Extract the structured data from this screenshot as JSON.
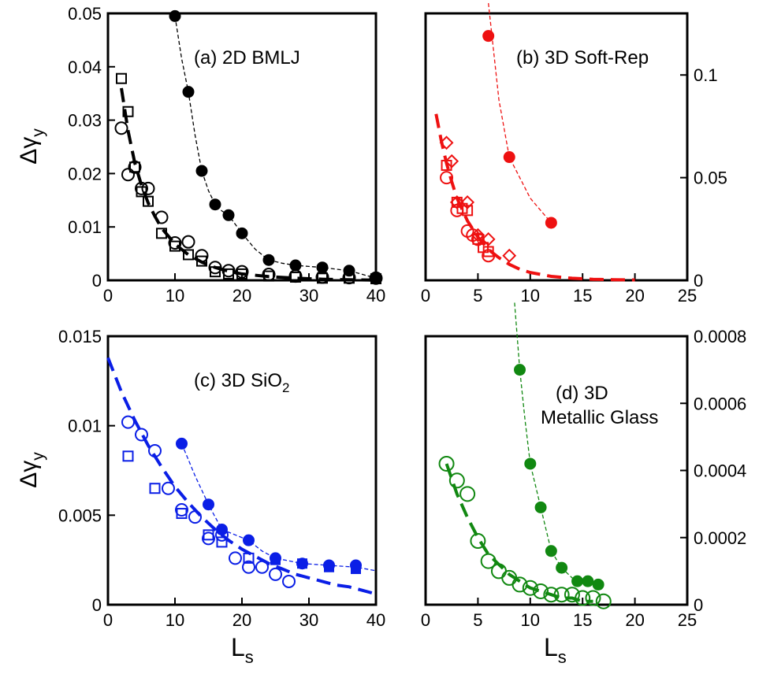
{
  "labels": {
    "x": "L",
    "x_sub": "s",
    "y_delta": "Δγ",
    "y_sub": "y"
  },
  "colors": {
    "a": "#000000",
    "b": "#ee1111",
    "c": "#0a1ee6",
    "d": "#118811"
  },
  "chart_data": [
    {
      "id": "a",
      "type": "scatter",
      "title": "(a) 2D BMLJ",
      "xlim": [
        0,
        40
      ],
      "ylim": [
        0,
        0.05
      ],
      "xticks": [
        "0",
        "10",
        "20",
        "30",
        "40"
      ],
      "yticks": [
        "0",
        "0.01",
        "0.02",
        "0.03",
        "0.04",
        "0.05"
      ],
      "y_axis_side": "left",
      "series": [
        {
          "marker": "filled-circle",
          "x": [
            10,
            12,
            14,
            16,
            18,
            20,
            24,
            28,
            32,
            36,
            40
          ],
          "y": [
            0.0495,
            0.0353,
            0.0205,
            0.0142,
            0.0122,
            0.0088,
            0.0038,
            0.0028,
            0.0024,
            0.0018,
            0.0004
          ]
        },
        {
          "marker": "open-circle",
          "x": [
            2,
            3,
            4,
            5,
            6,
            8,
            10,
            12,
            14,
            16,
            18,
            20,
            24,
            28,
            32,
            36,
            40
          ],
          "y": [
            0.0285,
            0.0198,
            0.0212,
            0.0172,
            0.0172,
            0.0118,
            0.007,
            0.0072,
            0.0046,
            0.0024,
            0.0018,
            0.0016,
            0.0011,
            0.0008,
            0.0006,
            0.0005,
            0.0004
          ]
        },
        {
          "marker": "open-square",
          "x": [
            2,
            3,
            4,
            5,
            6,
            8,
            10,
            12,
            14,
            16,
            18,
            20,
            24,
            28,
            32,
            36,
            40
          ],
          "y": [
            0.0378,
            0.0316,
            0.0212,
            0.0166,
            0.0148,
            0.0088,
            0.0064,
            0.0048,
            0.0036,
            0.0016,
            0.0012,
            0.0012,
            0.0008,
            0.0006,
            0.0004,
            0.0004,
            0.0003
          ]
        }
      ],
      "fits": [
        {
          "style": "thin-dashed",
          "x": [
            10,
            11,
            12,
            13,
            14,
            15,
            16,
            17,
            18,
            20,
            22,
            24,
            26,
            28,
            30,
            32,
            34,
            36,
            38,
            40
          ],
          "y": [
            0.0495,
            0.0415,
            0.0353,
            0.0272,
            0.0205,
            0.0168,
            0.0142,
            0.013,
            0.0122,
            0.0088,
            0.0058,
            0.0038,
            0.0032,
            0.0028,
            0.0026,
            0.0024,
            0.0021,
            0.0018,
            0.0011,
            0.0004
          ]
        },
        {
          "style": "thick-dashed",
          "x": [
            2,
            3,
            4,
            5,
            6,
            7,
            8,
            10,
            12,
            14,
            16,
            18,
            20,
            24,
            28,
            32,
            36,
            40
          ],
          "y": [
            0.036,
            0.028,
            0.022,
            0.0178,
            0.0145,
            0.012,
            0.0098,
            0.0068,
            0.0048,
            0.0034,
            0.0024,
            0.0017,
            0.0012,
            0.0007,
            0.0004,
            0.0002,
            0.0001,
            5e-05
          ]
        }
      ]
    },
    {
      "id": "b",
      "type": "scatter",
      "title": "(b) 3D Soft-Rep",
      "xlim": [
        0,
        25
      ],
      "ylim": [
        0,
        0.13
      ],
      "xticks": [
        "0",
        "5",
        "10",
        "15",
        "20",
        "25"
      ],
      "yticks": [
        "0",
        "0.05",
        "0.1"
      ],
      "y_tick_values": [
        0,
        0.05,
        0.1
      ],
      "y_axis_side": "right",
      "series": [
        {
          "marker": "filled-circle",
          "x": [
            6,
            8,
            12
          ],
          "y": [
            0.119,
            0.06,
            0.028
          ]
        },
        {
          "marker": "open-diamond",
          "x": [
            2,
            2.5,
            3,
            4,
            5,
            6,
            8
          ],
          "y": [
            0.067,
            0.058,
            0.038,
            0.038,
            0.022,
            0.02,
            0.012
          ]
        },
        {
          "marker": "open-square",
          "x": [
            2,
            3,
            3.5,
            4,
            5,
            5.5,
            6
          ],
          "y": [
            0.056,
            0.038,
            0.035,
            0.034,
            0.02,
            0.016,
            0.014
          ]
        },
        {
          "marker": "open-circle",
          "x": [
            2,
            3,
            4,
            4.5,
            5,
            6
          ],
          "y": [
            0.05,
            0.034,
            0.024,
            0.022,
            0.02,
            0.012
          ]
        }
      ],
      "fits": [
        {
          "style": "thin-dashed",
          "x": [
            6,
            7,
            8,
            10,
            12
          ],
          "y": [
            0.135,
            0.088,
            0.06,
            0.04,
            0.028
          ]
        },
        {
          "style": "thick-dashed",
          "x": [
            1,
            1.5,
            2,
            2.5,
            3,
            4,
            5,
            6,
            7,
            8,
            9,
            10,
            12,
            14,
            16,
            18,
            20
          ],
          "y": [
            0.081,
            0.068,
            0.057,
            0.048,
            0.04,
            0.029,
            0.021,
            0.015,
            0.011,
            0.0078,
            0.0054,
            0.0038,
            0.0019,
            0.001,
            0.0005,
            0.0003,
            0.0002
          ]
        }
      ]
    },
    {
      "id": "c",
      "type": "scatter",
      "title": "(c) 3D SiO",
      "title_sub": "2",
      "xlim": [
        0,
        40
      ],
      "ylim": [
        0,
        0.015
      ],
      "xticks": [
        "0",
        "10",
        "20",
        "30",
        "40"
      ],
      "yticks": [
        "0",
        "0.005",
        "0.01",
        "0.015"
      ],
      "y_tick_values": [
        0,
        0.005,
        0.01,
        0.015
      ],
      "y_axis_side": "left",
      "series": [
        {
          "marker": "filled-circle",
          "x": [
            11,
            15,
            17,
            21,
            25,
            29,
            33,
            37
          ],
          "y": [
            0.009,
            0.0056,
            0.0042,
            0.0036,
            0.0026,
            0.0023,
            0.0022,
            0.0022
          ]
        },
        {
          "marker": "filled-square",
          "x": [
            25,
            29,
            33,
            37
          ],
          "y": [
            0.0025,
            0.0023,
            0.0021,
            0.002
          ]
        },
        {
          "marker": "open-square",
          "x": [
            3,
            7,
            11,
            15,
            17,
            21
          ],
          "y": [
            0.0083,
            0.0065,
            0.0051,
            0.0039,
            0.0035,
            0.0026
          ]
        },
        {
          "marker": "open-circle",
          "x": [
            3,
            5,
            7,
            9,
            11,
            13,
            15,
            17,
            19,
            21,
            23,
            25,
            27
          ],
          "y": [
            0.0102,
            0.0095,
            0.0086,
            0.0065,
            0.0053,
            0.0049,
            0.0037,
            0.0039,
            0.0026,
            0.0021,
            0.0021,
            0.0017,
            0.0013
          ]
        }
      ],
      "fits": [
        {
          "style": "thin-dashed",
          "x": [
            11,
            13,
            15,
            17,
            19,
            21,
            23,
            25,
            29,
            33,
            37,
            40
          ],
          "y": [
            0.009,
            0.0072,
            0.0056,
            0.0042,
            0.0039,
            0.0036,
            0.003,
            0.0026,
            0.0023,
            0.0022,
            0.0021,
            0.0019
          ]
        },
        {
          "style": "thick-dashed",
          "x": [
            0,
            2,
            4,
            6,
            8,
            10,
            12,
            14,
            16,
            18,
            20,
            22,
            24,
            26,
            28,
            30,
            32,
            34,
            36,
            38,
            40
          ],
          "y": [
            0.0138,
            0.0119,
            0.0103,
            0.0089,
            0.0077,
            0.0066,
            0.0057,
            0.0049,
            0.0042,
            0.0036,
            0.0031,
            0.0027,
            0.0023,
            0.002,
            0.0017,
            0.0015,
            0.0013,
            0.0011,
            0.001,
            0.0008,
            0.0006
          ]
        }
      ]
    },
    {
      "id": "d",
      "type": "scatter",
      "title": "(d) 3D",
      "title_line2": "Metallic Glass",
      "xlim": [
        0,
        25
      ],
      "ylim": [
        0,
        0.0008
      ],
      "xticks": [
        "0",
        "5",
        "10",
        "15",
        "20",
        "25"
      ],
      "yticks": [
        "0",
        "0.0002",
        "0.0004",
        "0.0006",
        "0.0008"
      ],
      "y_tick_values": [
        0,
        0.0002,
        0.0004,
        0.0006,
        0.0008
      ],
      "y_axis_side": "right",
      "series": [
        {
          "marker": "filled-circle",
          "x": [
            9,
            10,
            11,
            12,
            13,
            14.5,
            15.5,
            16.5
          ],
          "y": [
            0.0007,
            0.00042,
            0.00029,
            0.00016,
            0.00011,
            7e-05,
            7e-05,
            6e-05
          ]
        },
        {
          "marker": "open-circle",
          "x": [
            2,
            3,
            4,
            5,
            6,
            7,
            8,
            9,
            10,
            11,
            12,
            13,
            14,
            15,
            16,
            17
          ],
          "y": [
            0.00042,
            0.00037,
            0.00033,
            0.00019,
            0.00013,
            0.0001,
            8e-05,
            6e-05,
            5e-05,
            4e-05,
            3e-05,
            3e-05,
            3e-05,
            2e-05,
            2e-05,
            1e-05
          ]
        }
      ],
      "fits": [
        {
          "style": "thin-dashed",
          "x": [
            8.5,
            9,
            9.5,
            10,
            11,
            12,
            13,
            14,
            15,
            16.5
          ],
          "y": [
            0.0009,
            0.0007,
            0.00055,
            0.00042,
            0.00029,
            0.00016,
            0.00011,
            8e-05,
            7e-05,
            6e-05
          ]
        },
        {
          "style": "thick-dashed",
          "x": [
            2,
            3,
            4,
            5,
            6,
            7,
            8,
            9,
            10,
            11,
            12,
            13,
            14,
            15,
            16
          ],
          "y": [
            0.00042,
            0.00033,
            0.00026,
            0.0002,
            0.00015,
            0.00012,
            9e-05,
            7e-05,
            5e-05,
            4e-05,
            3e-05,
            2e-05,
            2e-05,
            1e-05,
            1e-05
          ]
        }
      ]
    }
  ]
}
